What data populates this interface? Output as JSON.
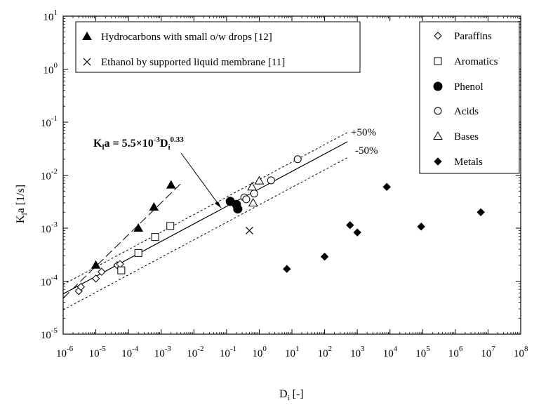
{
  "chart_data": {
    "type": "scatter",
    "xscale": "log",
    "yscale": "log",
    "xlim": [
      1e-06,
      100000000.0
    ],
    "ylim": [
      1e-05,
      10
    ],
    "xlabel_main": "D",
    "xlabel_sub": "i",
    "xlabel_unit": " [-]",
    "ylabel_main": "K",
    "ylabel_sub": "l",
    "ylabel_unit": "a [1/s]",
    "x_tick_exponents": [
      "-6",
      "-5",
      "-4",
      "-3",
      "-2",
      "-1",
      "0",
      "1",
      "2",
      "3",
      "4",
      "5",
      "6",
      "7",
      "8"
    ],
    "y_tick_exponents": [
      "-5",
      "-4",
      "-3",
      "-2",
      "-1",
      "0",
      "1"
    ],
    "tick_base": "10",
    "equation": {
      "lhs_main": "K",
      "lhs_sub": "l",
      "lhs_rest": "a = 5.5×10",
      "coef_exp": "-3",
      "var_main": "D",
      "var_sub": "i",
      "var_exp": "0.33"
    },
    "fit_labels": {
      "upper": "+50%",
      "lower": "-50%"
    },
    "fit": {
      "coefficient": 0.0055,
      "exponent": 0.33,
      "x_range": [
        1e-06,
        500
      ],
      "band": 0.5
    },
    "hydrocarbon_line": {
      "x_range": [
        1e-06,
        0.004
      ],
      "x_ref": 1e-05,
      "y_ref": 0.00019,
      "slope": 0.6
    },
    "legend_left": [
      {
        "marker": "triangle-filled",
        "label": "Hydrocarbons with small o/w drops [12]"
      },
      {
        "marker": "cross",
        "label": "Ethanol by supported liquid membrane [11]"
      }
    ],
    "legend_right": [
      {
        "marker": "diamond-open",
        "label": "Paraffins"
      },
      {
        "marker": "square-open",
        "label": "Aromatics"
      },
      {
        "marker": "circle-filled",
        "label": "Phenol"
      },
      {
        "marker": "circle-open",
        "label": "Acids"
      },
      {
        "marker": "triangle-open",
        "label": "Bases"
      },
      {
        "marker": "diamond-filled",
        "label": "Metals"
      }
    ],
    "series": [
      {
        "name": "Hydrocarbons with small o/w drops [12]",
        "marker": "triangle-filled",
        "points": [
          [
            1e-05,
            0.0002
          ],
          [
            0.0002,
            0.001
          ],
          [
            0.0006,
            0.0025
          ],
          [
            0.002,
            0.0065
          ]
        ]
      },
      {
        "name": "Ethanol by supported liquid membrane [11]",
        "marker": "cross",
        "points": [
          [
            0.5,
            0.0009
          ]
        ]
      },
      {
        "name": "Paraffins",
        "marker": "diamond-open",
        "points": [
          [
            3e-06,
            6.5e-05
          ],
          [
            3.5e-06,
            7.8e-05
          ],
          [
            1e-05,
            0.000112
          ],
          [
            1.5e-05,
            0.00015
          ],
          [
            4.5e-05,
            0.0002
          ],
          [
            5.5e-05,
            0.00021
          ]
        ]
      },
      {
        "name": "Aromatics",
        "marker": "square-open",
        "points": [
          [
            6e-05,
            0.00016
          ],
          [
            0.0002,
            0.00034
          ],
          [
            0.00065,
            0.00068
          ],
          [
            0.0019,
            0.0011
          ]
        ]
      },
      {
        "name": "Phenol",
        "marker": "circle-filled",
        "points": [
          [
            0.13,
            0.0032
          ],
          [
            0.2,
            0.0028
          ],
          [
            0.22,
            0.0023
          ]
        ]
      },
      {
        "name": "Acids",
        "marker": "circle-open",
        "points": [
          [
            0.35,
            0.0038
          ],
          [
            0.4,
            0.0035
          ],
          [
            0.7,
            0.0045
          ],
          [
            2.3,
            0.008
          ],
          [
            15,
            0.02
          ]
        ]
      },
      {
        "name": "Bases",
        "marker": "triangle-open",
        "points": [
          [
            0.6,
            0.006
          ],
          [
            0.65,
            0.003
          ],
          [
            1,
            0.0078
          ]
        ]
      },
      {
        "name": "Metals",
        "marker": "diamond-filled",
        "points": [
          [
            7,
            0.00017
          ],
          [
            100,
            0.00029
          ],
          [
            600,
            0.00114
          ],
          [
            1000,
            0.00083
          ],
          [
            8000,
            0.006
          ],
          [
            90000,
            0.00107
          ],
          [
            6000000,
            0.002
          ]
        ]
      }
    ]
  }
}
